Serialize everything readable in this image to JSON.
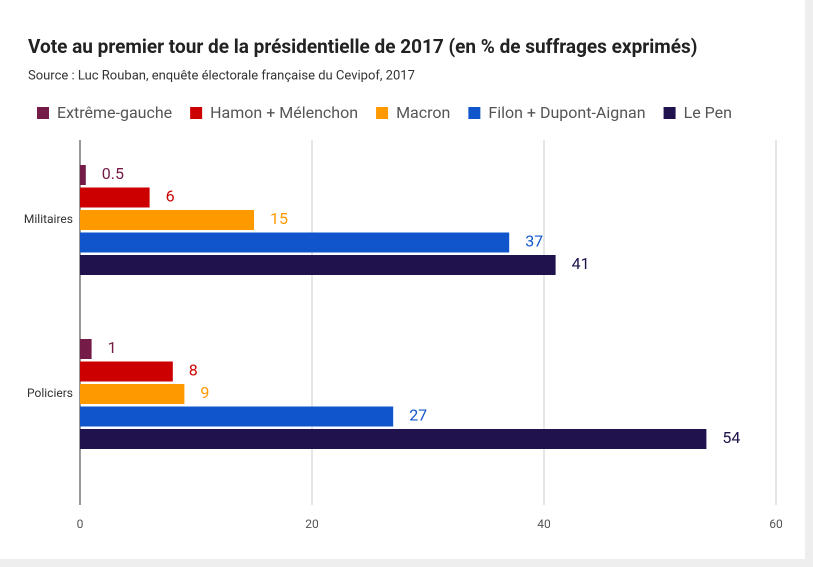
{
  "chart_data": {
    "type": "hbar",
    "title": "Vote au premier tour de la présidentielle de 2017 (en % de suffrages exprimés)",
    "subtitle": "Source : Luc Rouban, enquête électorale française du Cevipof, 2017",
    "categories": [
      "Militaires",
      "Policiers"
    ],
    "series": [
      {
        "name": "Extrême-gauche",
        "color": "#741b47",
        "values": [
          0.5,
          1
        ]
      },
      {
        "name": "Hamon + Mélenchon",
        "color": "#cc0000",
        "values": [
          6,
          8
        ]
      },
      {
        "name": "Macron",
        "color": "#ff9900",
        "values": [
          15,
          9
        ]
      },
      {
        "name": "Filon + Dupont-Aignan",
        "color": "#1155cc",
        "values": [
          37,
          27
        ]
      },
      {
        "name": "Le Pen",
        "color": "#20124d",
        "values": [
          41,
          54
        ]
      }
    ],
    "xlim": [
      0,
      60
    ],
    "xticks": [
      0,
      20,
      40,
      60
    ],
    "grid": true
  }
}
